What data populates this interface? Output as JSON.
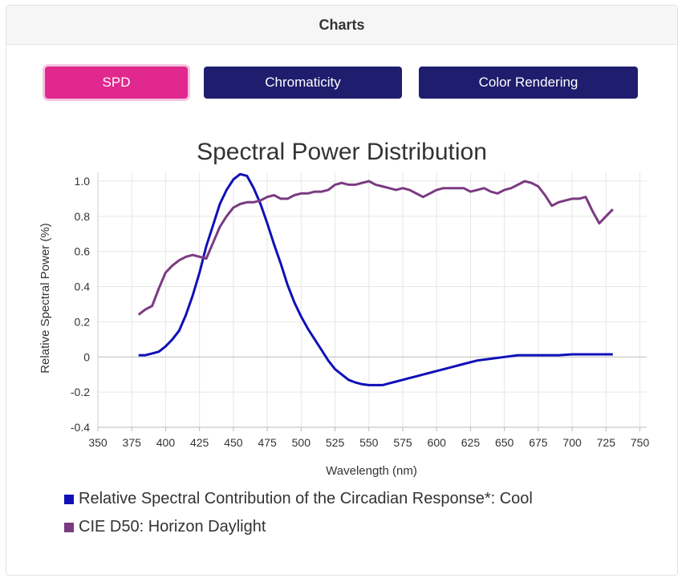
{
  "header": {
    "title": "Charts"
  },
  "tabs": [
    {
      "label": "SPD",
      "active": true
    },
    {
      "label": "Chromaticity",
      "active": false
    },
    {
      "label": "Color Rendering",
      "active": false
    }
  ],
  "colors": {
    "active_tab": "#e0288e",
    "inactive_tab": "#1f1d6e",
    "series_1": "#1010b8",
    "series_2": "#7b3a82"
  },
  "chart_data": {
    "type": "line",
    "title": "Spectral Power Distribution",
    "xlabel": "Wavelength (nm)",
    "ylabel": "Relative Spectral Power (%)",
    "xlim": [
      350,
      755
    ],
    "ylim": [
      -0.4,
      1.05
    ],
    "xticks": [
      350,
      375,
      400,
      425,
      450,
      475,
      500,
      525,
      550,
      575,
      600,
      625,
      650,
      675,
      700,
      725,
      750
    ],
    "yticks": [
      1.0,
      0.8,
      0.6,
      0.4,
      0.2,
      0,
      -0.2,
      -0.4
    ],
    "ytick_labels": [
      "1.0",
      "0.8",
      "0.6",
      "0.4",
      "0.2",
      "0",
      "-0.2",
      "-0.4"
    ],
    "grid": true,
    "legend_position": "bottom-left",
    "series": [
      {
        "name": "Relative Spectral Contribution of the Circadian Response*: Cool",
        "color": "#1010b8",
        "x": [
          380,
          385,
          390,
          395,
          400,
          405,
          410,
          415,
          420,
          425,
          430,
          435,
          440,
          445,
          450,
          455,
          460,
          465,
          470,
          475,
          480,
          485,
          490,
          495,
          500,
          505,
          510,
          515,
          520,
          525,
          530,
          535,
          540,
          545,
          550,
          555,
          560,
          565,
          570,
          575,
          580,
          585,
          590,
          595,
          600,
          610,
          620,
          630,
          640,
          650,
          660,
          670,
          680,
          690,
          700,
          710,
          720,
          730
        ],
        "y": [
          0.01,
          0.01,
          0.02,
          0.03,
          0.06,
          0.1,
          0.15,
          0.24,
          0.35,
          0.48,
          0.63,
          0.75,
          0.87,
          0.95,
          1.01,
          1.04,
          1.03,
          0.96,
          0.87,
          0.76,
          0.64,
          0.53,
          0.41,
          0.31,
          0.23,
          0.16,
          0.1,
          0.04,
          -0.02,
          -0.07,
          -0.1,
          -0.13,
          -0.145,
          -0.155,
          -0.16,
          -0.16,
          -0.16,
          -0.15,
          -0.14,
          -0.13,
          -0.12,
          -0.11,
          -0.1,
          -0.09,
          -0.08,
          -0.06,
          -0.04,
          -0.02,
          -0.01,
          0.0,
          0.01,
          0.01,
          0.01,
          0.01,
          0.015,
          0.015,
          0.015,
          0.015
        ]
      },
      {
        "name": "CIE D50: Horizon Daylight",
        "color": "#7b3a82",
        "x": [
          380,
          385,
          390,
          395,
          400,
          405,
          410,
          415,
          420,
          425,
          430,
          435,
          440,
          445,
          450,
          455,
          460,
          465,
          470,
          475,
          480,
          485,
          490,
          495,
          500,
          505,
          510,
          515,
          520,
          525,
          530,
          535,
          540,
          545,
          550,
          555,
          560,
          565,
          570,
          575,
          580,
          585,
          590,
          595,
          600,
          605,
          610,
          615,
          620,
          625,
          630,
          635,
          640,
          645,
          650,
          655,
          660,
          665,
          670,
          675,
          680,
          685,
          690,
          695,
          700,
          705,
          710,
          715,
          720,
          725,
          730
        ],
        "y": [
          0.24,
          0.27,
          0.29,
          0.39,
          0.48,
          0.52,
          0.55,
          0.57,
          0.58,
          0.57,
          0.56,
          0.65,
          0.74,
          0.8,
          0.85,
          0.87,
          0.88,
          0.88,
          0.89,
          0.91,
          0.92,
          0.9,
          0.9,
          0.92,
          0.93,
          0.93,
          0.94,
          0.94,
          0.95,
          0.98,
          0.99,
          0.98,
          0.98,
          0.99,
          1.0,
          0.98,
          0.97,
          0.96,
          0.95,
          0.96,
          0.95,
          0.93,
          0.91,
          0.93,
          0.95,
          0.96,
          0.96,
          0.96,
          0.96,
          0.94,
          0.95,
          0.96,
          0.94,
          0.93,
          0.95,
          0.96,
          0.98,
          1.0,
          0.99,
          0.97,
          0.92,
          0.86,
          0.88,
          0.89,
          0.9,
          0.9,
          0.91,
          0.83,
          0.76,
          0.8,
          0.84
        ]
      }
    ]
  }
}
